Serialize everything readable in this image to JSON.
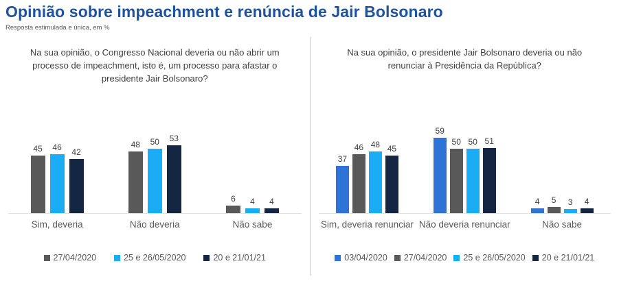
{
  "header": {
    "title": "Opinião sobre impeachment e renúncia de Jair Bolsonaro",
    "subtitle": "Resposta estimulada e única, em %"
  },
  "colors": {
    "title_blue": "#1F529E",
    "axis_line": "#E2E2E2",
    "divider": "#CCCCCC",
    "value_text": "#404040",
    "label_text": "#595959"
  },
  "chart_data": [
    {
      "type": "bar",
      "title": "Na sua opinião, o Congresso Nacional deveria ou não abrir um processo de impeachment, isto é, um processo para afastar o presidente Jair Bolsonaro?",
      "categories": [
        "Sim, deveria",
        "Não deveria",
        "Não sabe"
      ],
      "series": [
        {
          "name": "27/04/2020",
          "color": "#595959",
          "values": [
            45,
            48,
            6
          ]
        },
        {
          "name": "25 e 26/05/2020",
          "color": "#1AACF4",
          "values": [
            46,
            50,
            4
          ]
        },
        {
          "name": "20 e 21/01/21",
          "color": "#152642",
          "values": [
            42,
            53,
            4
          ]
        }
      ],
      "ylim": [
        0,
        65
      ],
      "grid": false,
      "value_labels": true,
      "legend_position": "bottom"
    },
    {
      "type": "bar",
      "title": "Na sua opinião, o presidente Jair Bolsonaro deveria ou não renunciar à Presidência da República?",
      "categories": [
        "Sim, deveria renunciar",
        "Não deveria renunciar",
        "Não sabe"
      ],
      "series": [
        {
          "name": "03/04/2020",
          "color": "#2E73D5",
          "values": [
            37,
            59,
            4
          ]
        },
        {
          "name": "27/04/2020",
          "color": "#595959",
          "values": [
            46,
            50,
            5
          ]
        },
        {
          "name": "25 e 26/05/2020",
          "color": "#1AACF4",
          "values": [
            48,
            50,
            3
          ]
        },
        {
          "name": "20 e 21/01/21",
          "color": "#152642",
          "values": [
            45,
            51,
            4
          ]
        }
      ],
      "ylim": [
        0,
        65
      ],
      "grid": false,
      "value_labels": true,
      "legend_position": "bottom"
    }
  ]
}
